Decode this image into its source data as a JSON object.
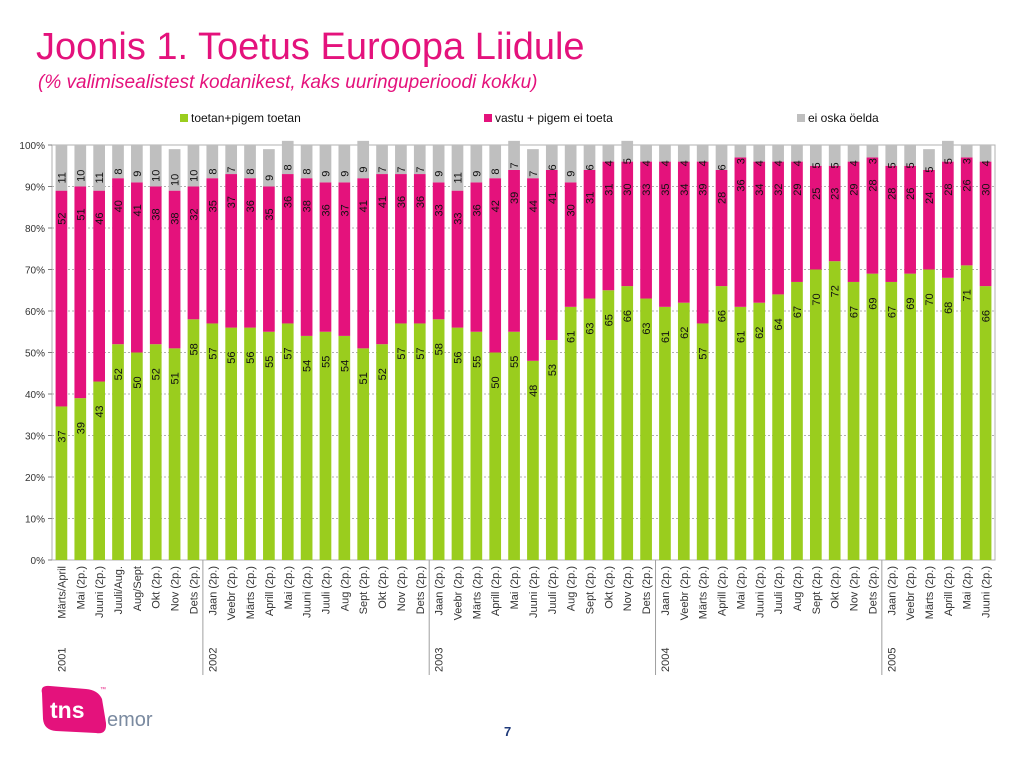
{
  "header": {
    "title": "Joonis 1. Toetus Euroopa Liidule",
    "subtitle": "(% valimisealistest kodanikest, kaks uuringuperioodi kokku)"
  },
  "footer": {
    "page_number": "7",
    "logo_primary": "tns",
    "logo_secondary": "emor",
    "logo_mark": "™"
  },
  "colors": {
    "accent": "#e4127c",
    "support": "#9acd1e",
    "oppose": "#e4127c",
    "dont_know": "#bfbfbf"
  },
  "chart_data": {
    "type": "bar",
    "stacked": true,
    "ylim": [
      0,
      100
    ],
    "ytick_labels": [
      "0%",
      "10%",
      "20%",
      "30%",
      "40%",
      "50%",
      "60%",
      "70%",
      "80%",
      "90%",
      "100%"
    ],
    "grid": true,
    "legend_position": "top",
    "categories": [
      "Märts/April",
      "Mai (2p.)",
      "Juuni (2p.)",
      "Juuli/Aug.",
      "Aug/Sept",
      "Okt (2p.)",
      "Nov (2p.)",
      "Dets (2p.)",
      "Jaan (2p.)",
      "Veebr (2p.)",
      "Märts (2p.)",
      "Aprill (2p.)",
      "Mai (2p.)",
      "Juuni (2p.)",
      "Juuli (2p.)",
      "Aug (2p.)",
      "Sept (2p.)",
      "Okt (2p.)",
      "Nov (2p.)",
      "Dets (2p.)",
      "Jaan (2p.)",
      "Veebr (2p.)",
      "Märts (2p.)",
      "Aprill (2p.)",
      "Mai (2p.)",
      "Juuni (2p.)",
      "Juuli (2p.)",
      "Aug (2p.)",
      "Sept (2p.)",
      "Okt (2p.)",
      "Nov (2p.)",
      "Dets (2p.)",
      "Jaan (2p.)",
      "Veebr (2p.)",
      "Märts (2p.)",
      "Aprill (2p.)",
      "Mai (2p.)",
      "Juuni (2p.)",
      "Juuli (2p.)",
      "Aug (2p.)",
      "Sept (2p.)",
      "Okt (2p.)",
      "Nov (2p.)",
      "Dets (2p.)",
      "Jaan (2p.)",
      "Veebr (2p.)",
      "Märts (2p.)",
      "Aprill (2p.)",
      "Mai (2p.)",
      "Juuni (2p.)"
    ],
    "years": [
      {
        "label": "2001",
        "start_index": 0
      },
      {
        "label": "2002",
        "start_index": 8
      },
      {
        "label": "2003",
        "start_index": 20
      },
      {
        "label": "2004",
        "start_index": 32
      },
      {
        "label": "2005",
        "start_index": 44
      }
    ],
    "series": [
      {
        "name": "toetan+pigem toetan",
        "color": "#9acd1e",
        "values": [
          37,
          39,
          43,
          52,
          50,
          52,
          51,
          58,
          57,
          56,
          56,
          55,
          57,
          54,
          55,
          54,
          51,
          52,
          57,
          57,
          58,
          56,
          55,
          50,
          55,
          48,
          53,
          61,
          63,
          65,
          66,
          63,
          61,
          62,
          57,
          66,
          61,
          62,
          64,
          67,
          70,
          72,
          67,
          69,
          67,
          69,
          70,
          68,
          71,
          66
        ]
      },
      {
        "name": "vastu + pigem ei toeta",
        "color": "#e4127c",
        "values": [
          52,
          51,
          46,
          40,
          41,
          38,
          38,
          32,
          35,
          37,
          36,
          35,
          36,
          38,
          36,
          37,
          41,
          41,
          36,
          36,
          33,
          33,
          36,
          42,
          39,
          44,
          41,
          30,
          31,
          31,
          30,
          33,
          35,
          34,
          39,
          28,
          36,
          34,
          32,
          29,
          25,
          23,
          29,
          28,
          28,
          26,
          24,
          28,
          26,
          30
        ]
      },
      {
        "name": "ei oska öelda",
        "color": "#bfbfbf",
        "values": [
          11,
          10,
          11,
          8,
          9,
          10,
          10,
          10,
          8,
          7,
          8,
          9,
          8,
          8,
          9,
          9,
          9,
          7,
          7,
          7,
          9,
          11,
          9,
          8,
          7,
          7,
          6,
          9,
          6,
          4,
          5,
          4,
          4,
          4,
          4,
          6,
          3,
          4,
          4,
          4,
          5,
          5,
          4,
          3,
          5,
          5,
          5,
          5,
          3,
          4
        ]
      }
    ]
  }
}
